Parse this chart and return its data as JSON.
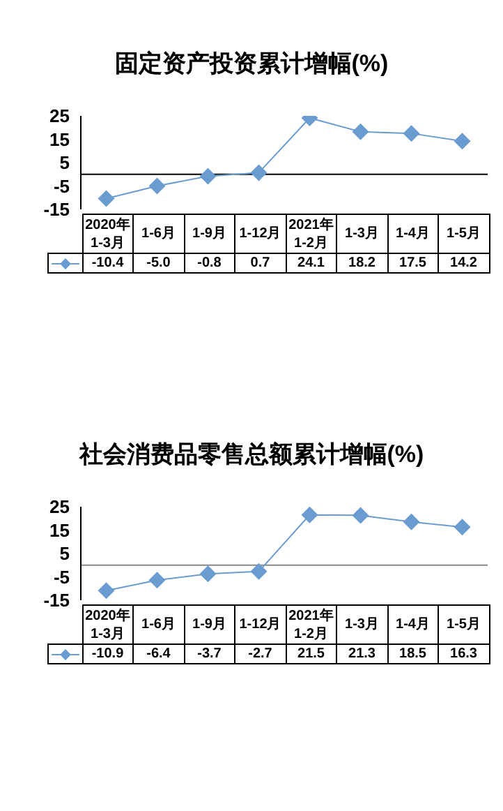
{
  "chart_data": [
    {
      "type": "line",
      "title": "固定资产投资累计增幅(%)",
      "categories": [
        "2020年\n1-3月",
        "1-6月",
        "1-9月",
        "1-12月",
        "2021年\n1-2月",
        "1-3月",
        "1-4月",
        "1-5月"
      ],
      "values": [
        -10.4,
        -5.0,
        -0.8,
        0.7,
        24.1,
        18.2,
        17.5,
        14.2
      ],
      "value_labels": [
        "-10.4",
        "-5.0",
        "-0.8",
        "0.7",
        "24.1",
        "18.2",
        "17.5",
        "14.2"
      ],
      "color": "#6a9bd1",
      "marker": "diamond",
      "ylim": [
        -15,
        25
      ],
      "yticks": [
        -15,
        -5,
        5,
        15,
        25
      ],
      "ref_lines": [
        {
          "axis": "y",
          "value": 0,
          "color": "#000000"
        }
      ]
    },
    {
      "type": "line",
      "title": "社会消费品零售总额累计增幅(%)",
      "categories": [
        "2020年\n1-3月",
        "1-6月",
        "1-9月",
        "1-12月",
        "2021年\n1-2月",
        "1-3月",
        "1-4月",
        "1-5月"
      ],
      "values": [
        -10.9,
        -6.4,
        -3.7,
        -2.7,
        21.5,
        21.3,
        18.5,
        16.3
      ],
      "value_labels": [
        "-10.9",
        "-6.4",
        "-3.7",
        "-2.7",
        "21.5",
        "21.3",
        "18.5",
        "16.3"
      ],
      "color": "#6a9bd1",
      "marker": "diamond",
      "ylim": [
        -15,
        25
      ],
      "yticks": [
        -15,
        -5,
        5,
        15,
        25
      ],
      "ref_lines": [
        {
          "axis": "y",
          "value": 0,
          "color": "#888888"
        }
      ]
    }
  ]
}
